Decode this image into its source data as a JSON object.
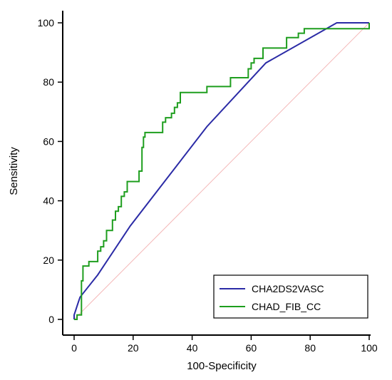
{
  "chart_data": {
    "type": "line",
    "title": "",
    "xlabel": "100-Specificity",
    "ylabel": "Sensitivity",
    "xlim": [
      0,
      100
    ],
    "ylim": [
      0,
      100
    ],
    "xticks": [
      "0",
      "20",
      "40",
      "60",
      "80",
      "100"
    ],
    "yticks": [
      "0",
      "20",
      "40",
      "60",
      "80",
      "100"
    ],
    "grid": false,
    "legend_position": "bottom-right",
    "reference_line": {
      "x": [
        0,
        100
      ],
      "y": [
        0,
        100
      ],
      "color": "#f4b8b8"
    },
    "series": [
      {
        "name": "CHA2DS2VASC",
        "color": "#2b2ba6",
        "step": false,
        "x": [
          0,
          0,
          0.5,
          1,
          1.5,
          2,
          8,
          19,
          45,
          65,
          89,
          100
        ],
        "y": [
          0,
          1.5,
          3,
          4.5,
          6,
          7.5,
          15,
          31.5,
          65,
          86.5,
          100,
          100
        ]
      },
      {
        "name": "CHAD_FIB_CC",
        "color": "#1e9e1e",
        "step": true,
        "x": [
          0,
          1,
          2.5,
          3,
          4,
          5,
          6,
          8,
          9,
          10,
          11,
          12,
          13,
          14,
          15,
          16,
          17,
          18,
          20,
          22,
          23,
          23.5,
          24,
          25,
          30,
          31,
          32,
          33,
          34,
          35,
          36,
          37,
          45,
          52,
          53,
          56,
          59,
          60,
          61,
          64,
          72,
          74,
          76,
          77,
          78,
          80,
          88,
          94,
          100
        ],
        "y": [
          0,
          1.5,
          13,
          18,
          18,
          19.5,
          19.5,
          23,
          24.5,
          26.5,
          30,
          30,
          33.5,
          36.5,
          38,
          41.5,
          43,
          46.5,
          46.5,
          50,
          58,
          61.5,
          63,
          63,
          66.5,
          68,
          68,
          69.5,
          71.5,
          73,
          76.5,
          76.5,
          78.5,
          78.5,
          81.5,
          81.5,
          84.5,
          86.5,
          88,
          91.5,
          95,
          95,
          96.5,
          96.5,
          98,
          98,
          98,
          98,
          100
        ]
      }
    ]
  }
}
